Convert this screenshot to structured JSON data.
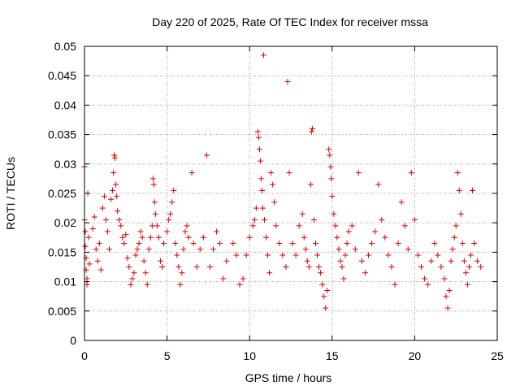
{
  "chart_data": {
    "type": "scatter",
    "title": "Day 220 of 2025, Rate Of TEC Index for receiver mssa",
    "xlabel": "GPS time / hours",
    "ylabel": "ROTI / TECUs",
    "xlim": [
      0,
      25
    ],
    "ylim": [
      0,
      0.05
    ],
    "xticks": [
      0,
      5,
      10,
      15,
      20,
      25
    ],
    "xtick_labels": [
      "0",
      "5",
      "10",
      "15",
      "20",
      "25"
    ],
    "yticks": [
      0,
      0.005,
      0.01,
      0.015,
      0.02,
      0.025,
      0.03,
      0.035,
      0.04,
      0.045,
      0.05
    ],
    "ytick_labels": [
      "0",
      "0.005",
      "0.01",
      "0.015",
      "0.02",
      "0.025",
      "0.03",
      "0.035",
      "0.04",
      "0.045",
      "0.05"
    ],
    "grid": true,
    "marker": "+",
    "marker_color": "#dd0000",
    "series": [
      {
        "name": "ROTI",
        "points": [
          [
            0.0,
            0.0295
          ],
          [
            0.0,
            0.0205
          ],
          [
            0.05,
            0.0185
          ],
          [
            0.05,
            0.016
          ],
          [
            0.1,
            0.014
          ],
          [
            0.1,
            0.012
          ],
          [
            0.15,
            0.0105
          ],
          [
            0.15,
            0.0095
          ],
          [
            0.2,
            0.025
          ],
          [
            0.25,
            0.0175
          ],
          [
            0.3,
            0.013
          ],
          [
            0.5,
            0.019
          ],
          [
            0.6,
            0.021
          ],
          [
            0.7,
            0.0155
          ],
          [
            0.8,
            0.0135
          ],
          [
            0.9,
            0.0165
          ],
          [
            1.0,
            0.012
          ],
          [
            1.1,
            0.0225
          ],
          [
            1.2,
            0.0245
          ],
          [
            1.3,
            0.0205
          ],
          [
            1.4,
            0.0185
          ],
          [
            1.5,
            0.0155
          ],
          [
            1.6,
            0.024
          ],
          [
            1.7,
            0.0255
          ],
          [
            1.75,
            0.0285
          ],
          [
            1.8,
            0.0315
          ],
          [
            1.85,
            0.031
          ],
          [
            1.9,
            0.0265
          ],
          [
            1.95,
            0.0245
          ],
          [
            2.0,
            0.022
          ],
          [
            2.1,
            0.0205
          ],
          [
            2.2,
            0.0195
          ],
          [
            2.3,
            0.0175
          ],
          [
            2.4,
            0.0165
          ],
          [
            2.5,
            0.018
          ],
          [
            2.6,
            0.014
          ],
          [
            2.7,
            0.0125
          ],
          [
            2.8,
            0.0095
          ],
          [
            2.9,
            0.0105
          ],
          [
            3.0,
            0.0115
          ],
          [
            3.1,
            0.0145
          ],
          [
            3.2,
            0.0155
          ],
          [
            3.3,
            0.0165
          ],
          [
            3.4,
            0.0185
          ],
          [
            3.5,
            0.0175
          ],
          [
            3.6,
            0.0135
          ],
          [
            3.7,
            0.0115
          ],
          [
            3.8,
            0.0095
          ],
          [
            3.9,
            0.0155
          ],
          [
            4.0,
            0.0175
          ],
          [
            4.1,
            0.0195
          ],
          [
            4.15,
            0.0275
          ],
          [
            4.2,
            0.0265
          ],
          [
            4.25,
            0.0235
          ],
          [
            4.3,
            0.0215
          ],
          [
            4.4,
            0.0195
          ],
          [
            4.5,
            0.0175
          ],
          [
            4.6,
            0.0135
          ],
          [
            4.7,
            0.0125
          ],
          [
            4.8,
            0.0165
          ],
          [
            5.0,
            0.0185
          ],
          [
            5.1,
            0.0205
          ],
          [
            5.2,
            0.0215
          ],
          [
            5.3,
            0.0235
          ],
          [
            5.4,
            0.0255
          ],
          [
            5.5,
            0.0165
          ],
          [
            5.6,
            0.0145
          ],
          [
            5.7,
            0.0125
          ],
          [
            5.8,
            0.0095
          ],
          [
            5.9,
            0.0115
          ],
          [
            6.0,
            0.0155
          ],
          [
            6.1,
            0.0185
          ],
          [
            6.2,
            0.0195
          ],
          [
            6.3,
            0.0175
          ],
          [
            6.5,
            0.0285
          ],
          [
            6.6,
            0.0165
          ],
          [
            6.8,
            0.0125
          ],
          [
            7.0,
            0.0155
          ],
          [
            7.2,
            0.0175
          ],
          [
            7.4,
            0.0315
          ],
          [
            7.6,
            0.0125
          ],
          [
            7.8,
            0.0155
          ],
          [
            8.0,
            0.0185
          ],
          [
            8.2,
            0.0165
          ],
          [
            8.4,
            0.0105
          ],
          [
            8.6,
            0.0135
          ],
          [
            9.0,
            0.0165
          ],
          [
            9.2,
            0.0145
          ],
          [
            9.4,
            0.0095
          ],
          [
            9.6,
            0.0105
          ],
          [
            9.8,
            0.0145
          ],
          [
            10.0,
            0.0175
          ],
          [
            10.2,
            0.0195
          ],
          [
            10.3,
            0.0205
          ],
          [
            10.4,
            0.0225
          ],
          [
            10.5,
            0.0355
          ],
          [
            10.55,
            0.0345
          ],
          [
            10.6,
            0.0325
          ],
          [
            10.65,
            0.0305
          ],
          [
            10.7,
            0.0275
          ],
          [
            10.75,
            0.0255
          ],
          [
            10.8,
            0.0225
          ],
          [
            10.85,
            0.0485
          ],
          [
            10.9,
            0.0205
          ],
          [
            11.0,
            0.0175
          ],
          [
            11.1,
            0.0145
          ],
          [
            11.2,
            0.0115
          ],
          [
            11.3,
            0.0285
          ],
          [
            11.4,
            0.0265
          ],
          [
            11.5,
            0.0235
          ],
          [
            11.6,
            0.0195
          ],
          [
            11.8,
            0.0165
          ],
          [
            12.0,
            0.0145
          ],
          [
            12.2,
            0.0125
          ],
          [
            12.3,
            0.044
          ],
          [
            12.4,
            0.0285
          ],
          [
            12.6,
            0.0165
          ],
          [
            12.8,
            0.0145
          ],
          [
            13.0,
            0.0195
          ],
          [
            13.2,
            0.0215
          ],
          [
            13.3,
            0.0175
          ],
          [
            13.4,
            0.0155
          ],
          [
            13.5,
            0.0135
          ],
          [
            13.6,
            0.0125
          ],
          [
            13.7,
            0.0265
          ],
          [
            13.75,
            0.0355
          ],
          [
            13.8,
            0.036
          ],
          [
            13.9,
            0.0205
          ],
          [
            14.0,
            0.0165
          ],
          [
            14.1,
            0.0145
          ],
          [
            14.2,
            0.0125
          ],
          [
            14.3,
            0.0115
          ],
          [
            14.4,
            0.0095
          ],
          [
            14.5,
            0.0075
          ],
          [
            14.6,
            0.0055
          ],
          [
            14.7,
            0.0085
          ],
          [
            14.8,
            0.0325
          ],
          [
            14.85,
            0.0315
          ],
          [
            14.9,
            0.0295
          ],
          [
            14.95,
            0.0275
          ],
          [
            15.0,
            0.0245
          ],
          [
            15.1,
            0.0215
          ],
          [
            15.2,
            0.0195
          ],
          [
            15.3,
            0.0175
          ],
          [
            15.4,
            0.0155
          ],
          [
            15.5,
            0.0135
          ],
          [
            15.6,
            0.0125
          ],
          [
            15.7,
            0.0105
          ],
          [
            15.8,
            0.0145
          ],
          [
            15.9,
            0.0165
          ],
          [
            16.0,
            0.0185
          ],
          [
            16.2,
            0.0195
          ],
          [
            16.4,
            0.0155
          ],
          [
            16.6,
            0.0285
          ],
          [
            16.8,
            0.0135
          ],
          [
            17.0,
            0.0115
          ],
          [
            17.2,
            0.0145
          ],
          [
            17.4,
            0.0165
          ],
          [
            17.6,
            0.0185
          ],
          [
            17.8,
            0.0265
          ],
          [
            18.0,
            0.0205
          ],
          [
            18.2,
            0.0175
          ],
          [
            18.4,
            0.0145
          ],
          [
            18.6,
            0.0125
          ],
          [
            18.8,
            0.0095
          ],
          [
            19.0,
            0.0165
          ],
          [
            19.2,
            0.0235
          ],
          [
            19.4,
            0.0195
          ],
          [
            19.6,
            0.0155
          ],
          [
            19.8,
            0.0285
          ],
          [
            20.0,
            0.0205
          ],
          [
            20.2,
            0.0145
          ],
          [
            20.4,
            0.0125
          ],
          [
            20.6,
            0.0105
          ],
          [
            20.8,
            0.0095
          ],
          [
            21.0,
            0.0135
          ],
          [
            21.2,
            0.0165
          ],
          [
            21.4,
            0.0145
          ],
          [
            21.6,
            0.0125
          ],
          [
            21.8,
            0.0105
          ],
          [
            21.9,
            0.0075
          ],
          [
            22.0,
            0.0055
          ],
          [
            22.1,
            0.0085
          ],
          [
            22.2,
            0.0135
          ],
          [
            22.3,
            0.0155
          ],
          [
            22.4,
            0.0175
          ],
          [
            22.5,
            0.0195
          ],
          [
            22.6,
            0.0285
          ],
          [
            22.7,
            0.0255
          ],
          [
            22.8,
            0.0215
          ],
          [
            22.9,
            0.0165
          ],
          [
            23.0,
            0.0135
          ],
          [
            23.1,
            0.0115
          ],
          [
            23.2,
            0.0095
          ],
          [
            23.3,
            0.0125
          ],
          [
            23.4,
            0.0145
          ],
          [
            23.5,
            0.0255
          ],
          [
            23.6,
            0.0165
          ],
          [
            23.8,
            0.0135
          ],
          [
            24.0,
            0.0125
          ]
        ]
      }
    ]
  }
}
